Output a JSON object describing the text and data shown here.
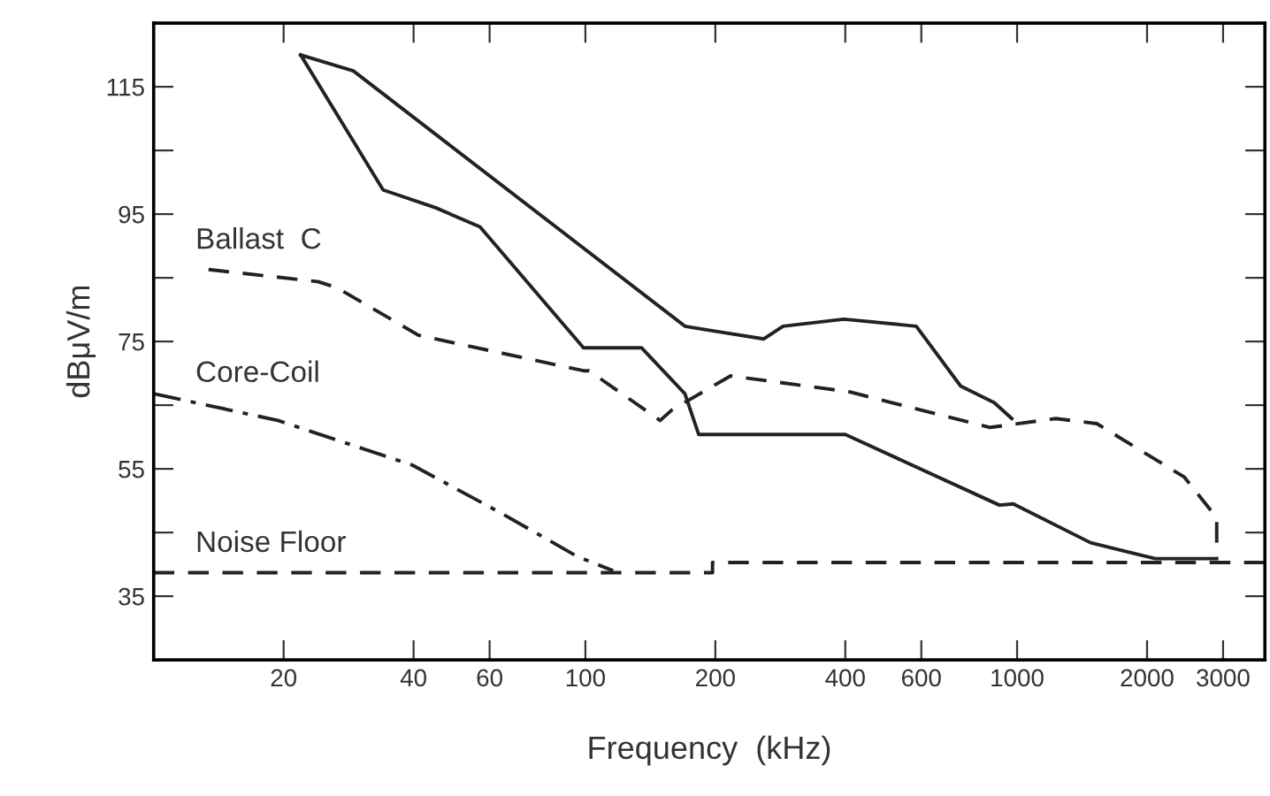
{
  "chart_data": {
    "type": "line",
    "xlabel": "Frequency  (kHz)",
    "ylabel": "dBμV/m",
    "log": "x",
    "grid": false,
    "legend": false,
    "marker": "none",
    "xlim": [
      10,
      3750
    ],
    "xticks": [
      20,
      40,
      60,
      100,
      200,
      400,
      600,
      1000,
      2000,
      3000
    ],
    "ylim": [
      25,
      125
    ],
    "yticks": [
      35,
      {
        "value": 45,
        "label": null
      },
      55,
      {
        "value": 65,
        "label": null
      },
      75,
      {
        "value": 85,
        "label": null
      },
      95,
      {
        "value": 105,
        "label": null
      },
      115
    ],
    "series": [
      {
        "color": "#222222",
        "line_style": "solid",
        "x": [
          21.9,
          29,
          170,
          192,
          259,
          287,
          397,
          584,
          740,
          885,
          972
        ],
        "values": [
          120,
          117.5,
          77.4,
          76.8,
          75.4,
          77.4,
          78.5,
          77.4,
          68,
          65.4,
          62.9
        ]
      },
      {
        "color": "#222222",
        "line_style": "solid",
        "x": [
          21.9,
          34,
          45,
          57,
          99,
          135,
          170,
          183,
          400,
          910,
          980,
          1480,
          2090,
          2900
        ],
        "values": [
          120,
          98.8,
          96,
          93,
          74,
          74,
          66.8,
          60.4,
          60.4,
          49.3,
          49.5,
          43.4,
          40.9,
          40.9
        ]
      },
      {
        "name": "Ballast  C",
        "color": "#222222",
        "line_style": "dashed",
        "x": [
          13.4,
          24,
          26.5,
          41,
          99,
          102,
          149,
          159,
          217,
          408,
          866,
          1230,
          1530,
          2440,
          2900,
          2900
        ],
        "values": [
          86.3,
          84.4,
          83.5,
          76,
          70.4,
          70.4,
          62.6,
          64.3,
          69.6,
          67.1,
          61.5,
          62.9,
          62.1,
          53.7,
          47.3,
          41.2
        ]
      },
      {
        "name": "Core-Coil",
        "color": "#222222",
        "line_style": "dashdot",
        "x": [
          10,
          19.4,
          39.7,
          63.6,
          96,
          116
        ],
        "values": [
          66.8,
          62.6,
          55.6,
          48.1,
          41.2,
          39
        ]
      },
      {
        "name": "Noise Floor",
        "color": "#222222",
        "line_style": "dashed",
        "x": [
          10,
          197,
          197,
          3750
        ],
        "values": [
          38.7,
          38.7,
          40.3,
          40.3
        ]
      }
    ]
  }
}
